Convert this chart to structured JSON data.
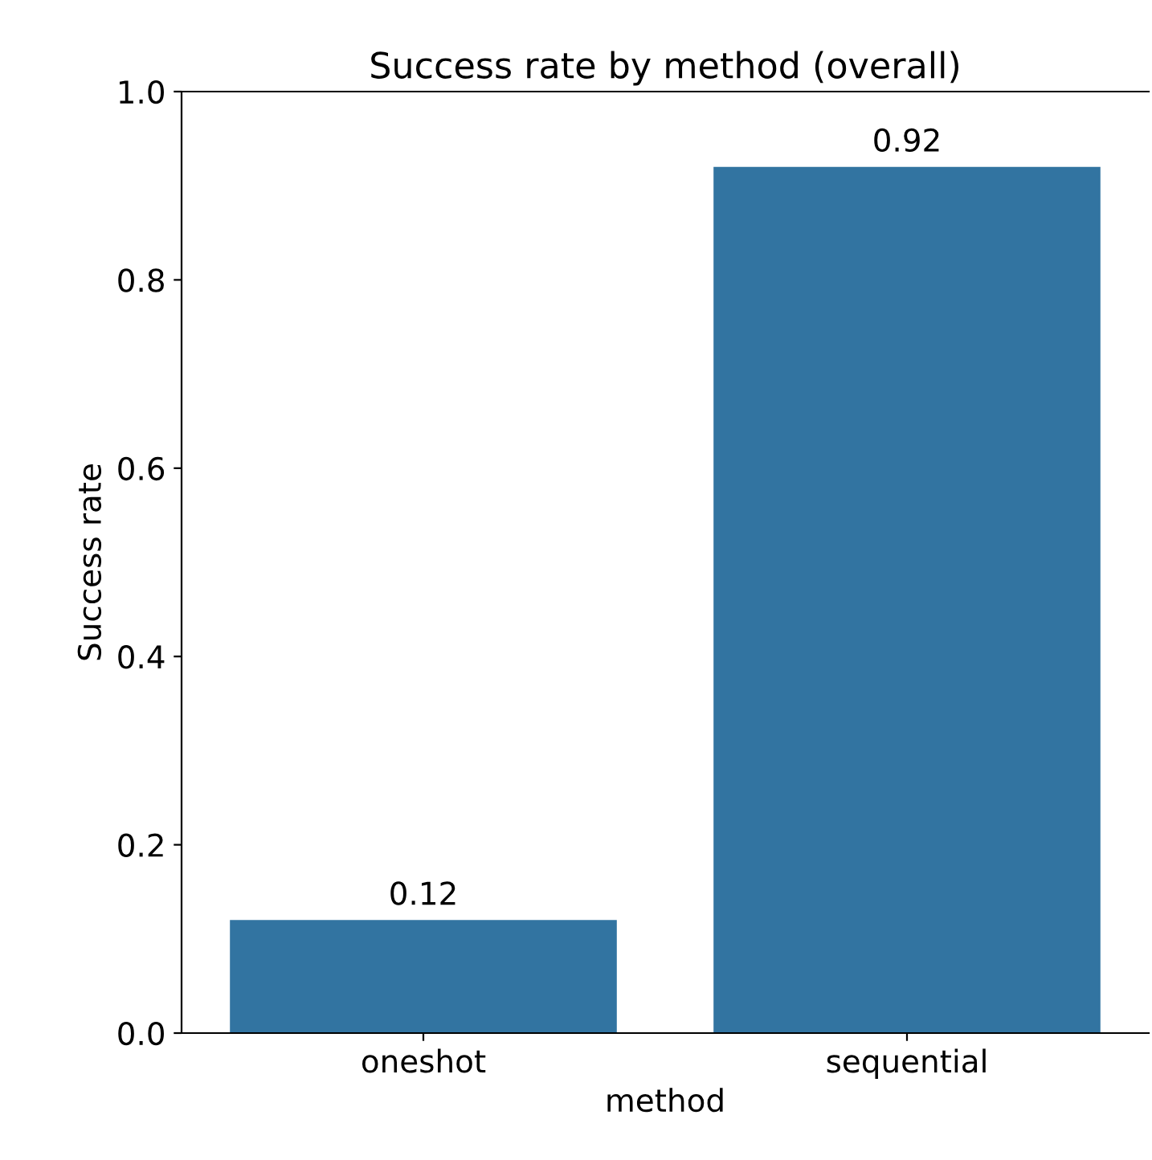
{
  "chart_data": {
    "type": "bar",
    "title": "Success rate by method (overall)",
    "xlabel": "method",
    "ylabel": "Success rate",
    "categories": [
      "oneshot",
      "sequential"
    ],
    "values": [
      0.12,
      0.92
    ],
    "color": "#3274a1",
    "ylim": [
      0,
      1.0
    ],
    "yticks": [
      {
        "value": 0,
        "label": "0.0"
      },
      0.2,
      0.4,
      0.6,
      0.8,
      {
        "value": 1.0,
        "label": "1.0"
      }
    ],
    "data_labels": true,
    "grid": false,
    "legend": false
  }
}
